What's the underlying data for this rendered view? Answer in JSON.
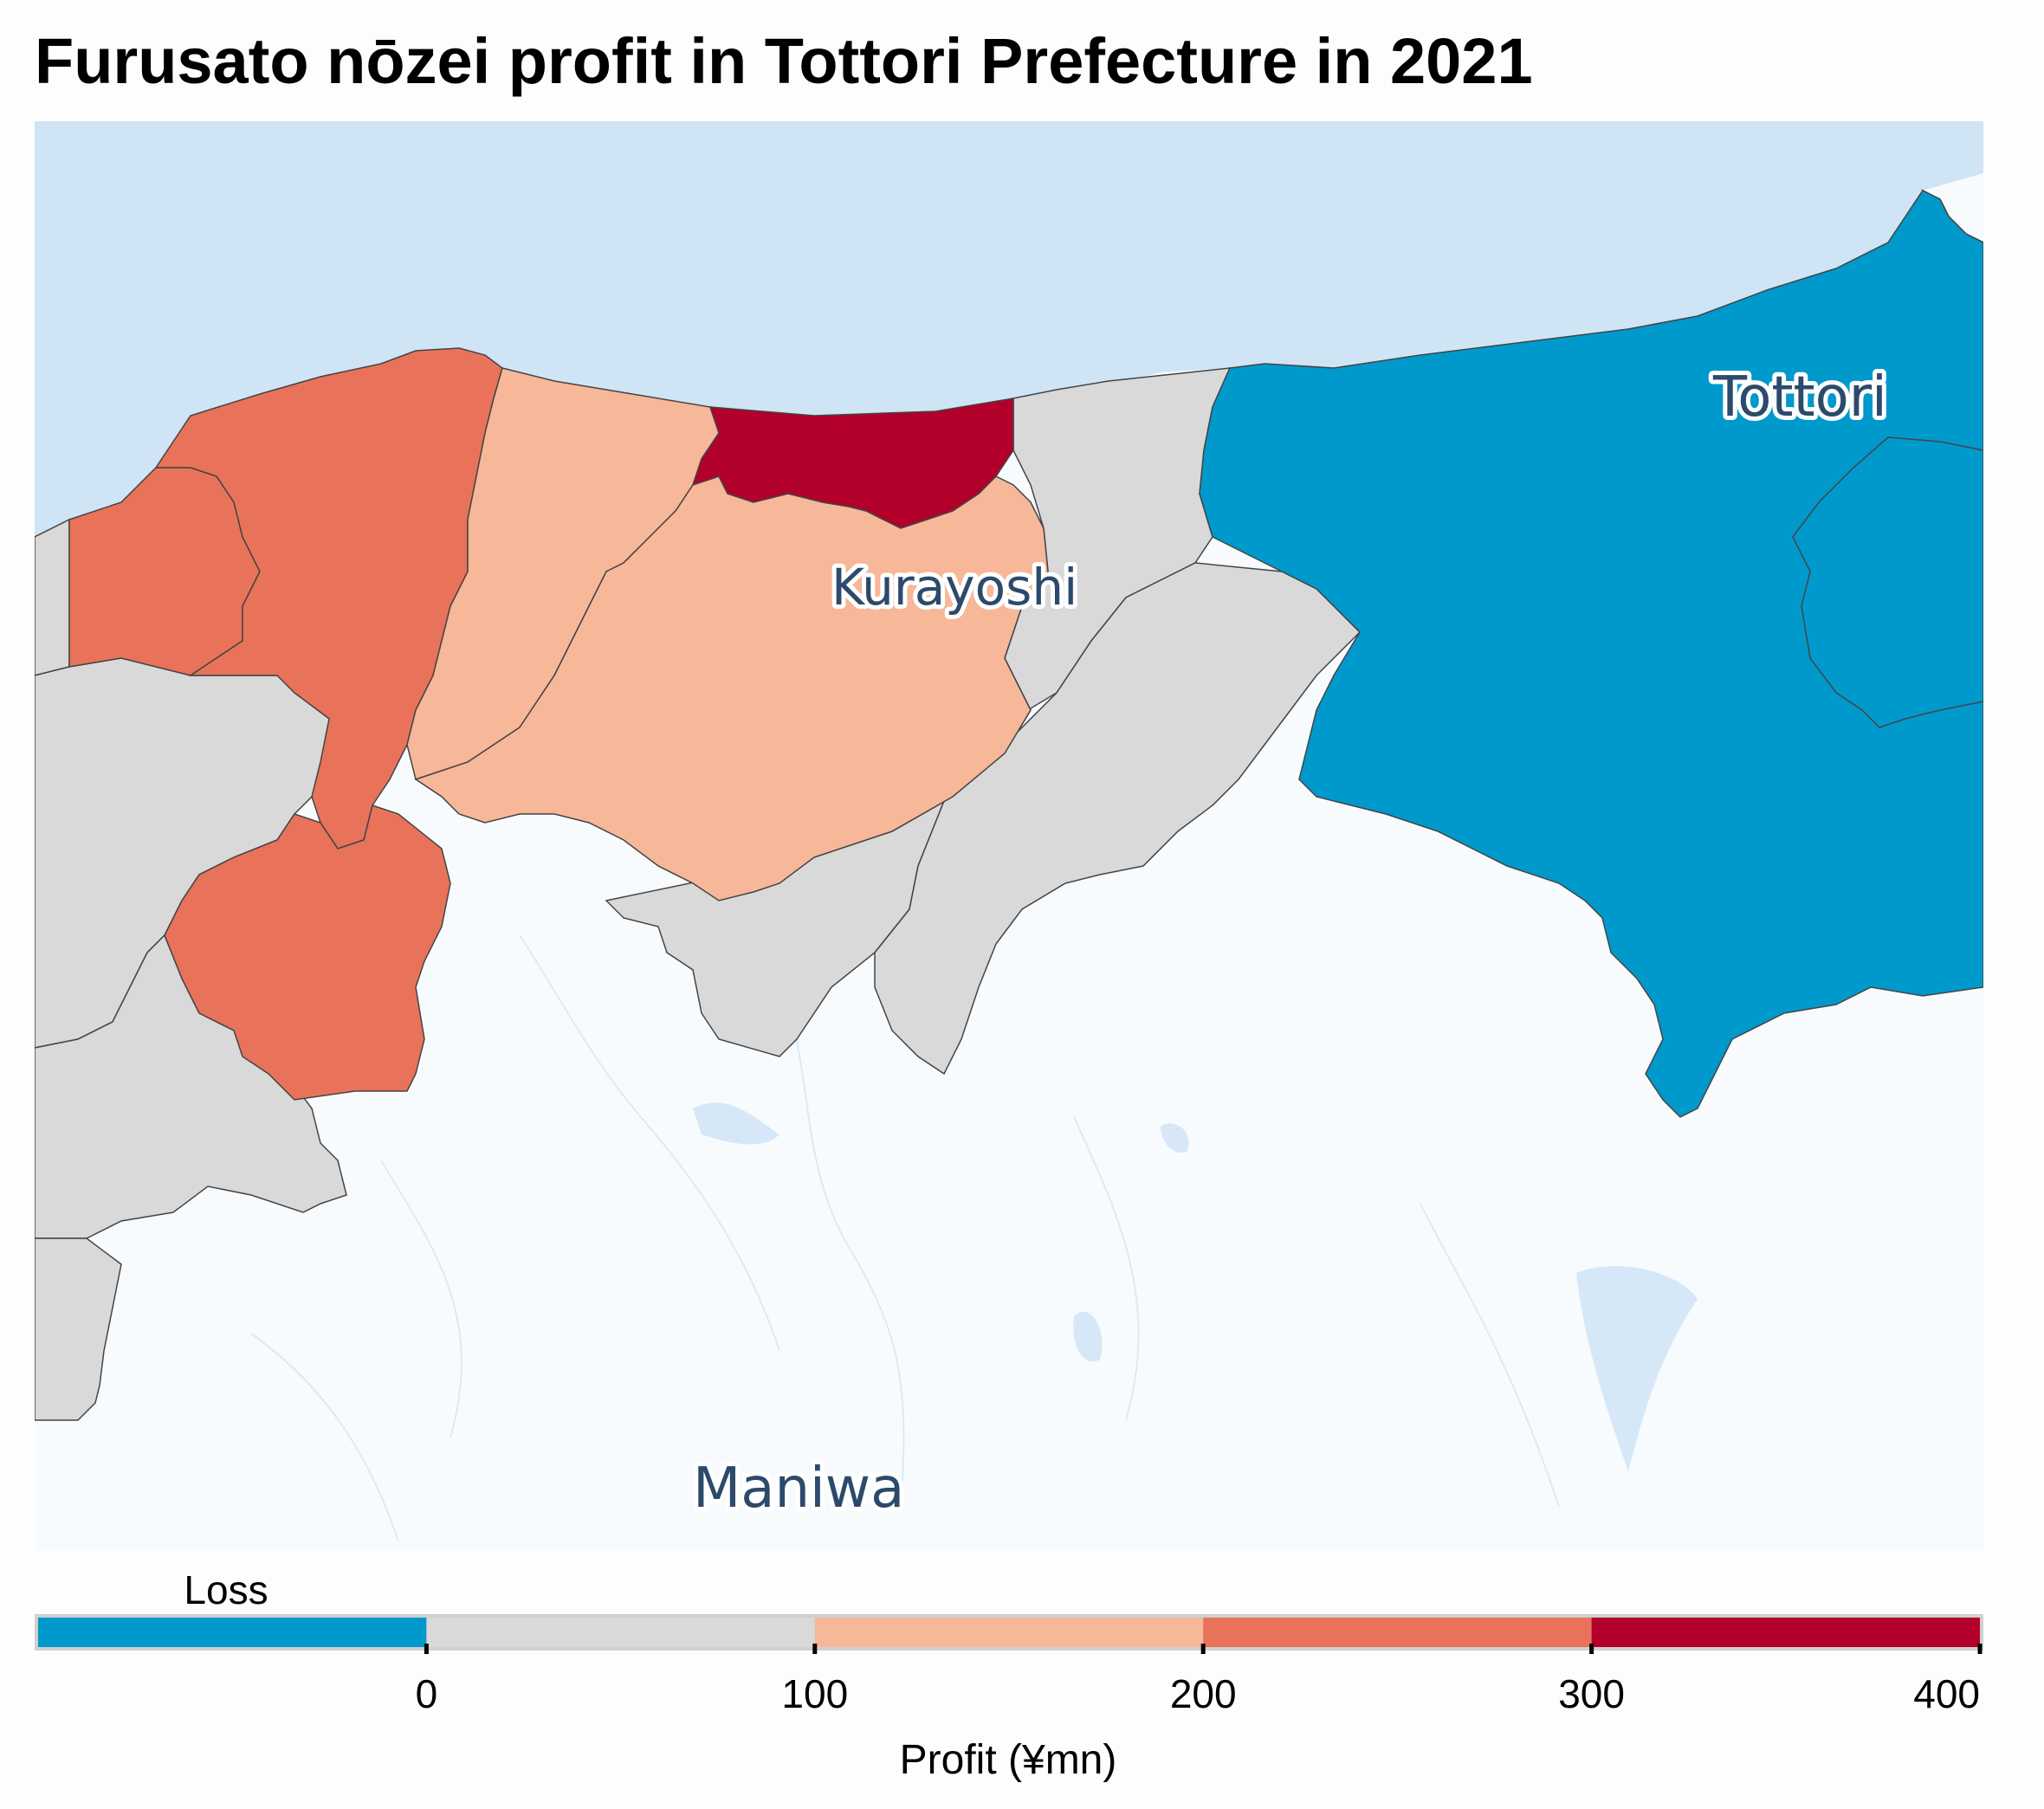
{
  "title": "Furusato nōzei profit in Tottori Prefecture in 2021",
  "places": {
    "tottori": "Tottori",
    "kurayoshi": "Kurayoshi",
    "maniwa": "Maniwa"
  },
  "legend": {
    "loss_label": "Loss",
    "axis_title": "Profit (¥mn)",
    "ticks": [
      "0",
      "100",
      "200",
      "300",
      "400"
    ],
    "bins": [
      {
        "label": "Loss",
        "color": "#0099cc"
      },
      {
        "label": "0–100",
        "color": "#d9d9d9"
      },
      {
        "label": "100–200",
        "color": "#f7b799"
      },
      {
        "label": "200–300",
        "color": "#e8735a"
      },
      {
        "label": "300–400",
        "color": "#b2002a"
      }
    ]
  },
  "colors": {
    "sea": "#cfe4f5",
    "outside_prefecture": "#f8fbfe",
    "loss": "#0099cc",
    "profit_0_100": "#d9d9d9",
    "profit_100_200": "#f7b799",
    "profit_200_300": "#e8735a",
    "profit_300_400": "#b2002a"
  }
}
